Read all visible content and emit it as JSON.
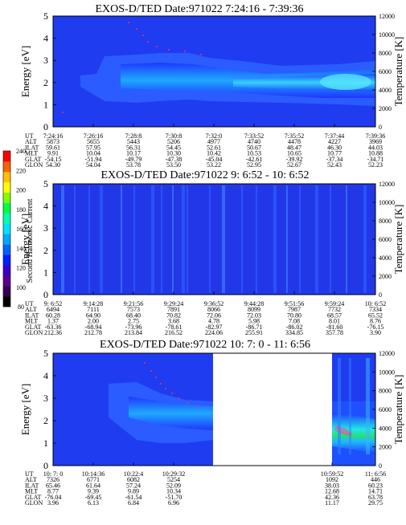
{
  "chart_data": [
    {
      "type": "heatmap",
      "title": "EXOS-D/TED   Date:971022  7:24:16 - 7:39:36",
      "ylabel": "Energy [eV]",
      "ylabel_right": "Temperature [K]",
      "ylim": [
        0,
        5
      ],
      "ylim_right": [
        0,
        12000
      ],
      "yticks": [
        "0",
        "1",
        "2",
        "3",
        "4",
        "5"
      ],
      "yticks_right": [
        "0",
        "2000",
        "4000",
        "6000",
        "8000",
        "10000",
        "12000"
      ],
      "row_labels": [
        "UT",
        "ALT",
        "ILAT",
        "MLT",
        "GLAT",
        "GLON"
      ],
      "columns": [
        [
          "7:24:16",
          "5873",
          "59.61",
          "9.91",
          "-54.15",
          "54.30"
        ],
        [
          "7:26:16",
          "5655",
          "57.95",
          "10.04",
          "-51.94",
          "54.04"
        ],
        [
          "7:28:8",
          "5443",
          "56.31",
          "10.17",
          "-49.79",
          "53.78"
        ],
        [
          "7:30:8",
          "5206",
          "54.45",
          "10.30",
          "-47.38",
          "53.50"
        ],
        [
          "7:32:0",
          "4977",
          "52.61",
          "10.42",
          "-45.04",
          "53.22"
        ],
        [
          "7:33:52",
          "4740",
          "50.67",
          "10.53",
          "-42.61",
          "52.95"
        ],
        [
          "7:35:52",
          "4478",
          "48.47",
          "10.65",
          "-39.92",
          "52.67"
        ],
        [
          "7:37:44",
          "4227",
          "46.30",
          "10.77",
          "-37.34",
          "52.43"
        ],
        [
          "7:39:36",
          "3969",
          "44.03",
          "10.88",
          "-34.71",
          "52.23"
        ]
      ],
      "band": {
        "center_ev": [
          2.6,
          2.5,
          2.5,
          2.4,
          2.3,
          2.3,
          2.2,
          2.2,
          2.0
        ],
        "half_width_ev": [
          0.5,
          1.0,
          1.0,
          0.9,
          0.8,
          0.8,
          0.8,
          0.7,
          0.8
        ]
      }
    },
    {
      "type": "heatmap",
      "title": "EXOS-D/TED   Date:971022  9: 6:52 - 10: 6:52",
      "ylabel": "Energy [eV]",
      "ylabel_right": "Temperature [K]",
      "ylim": [
        0,
        5
      ],
      "ylim_right": [
        0,
        12000
      ],
      "yticks": [
        "0",
        "1",
        "2",
        "3",
        "4",
        "5"
      ],
      "yticks_right": [
        "0",
        "2000",
        "4000",
        "6000",
        "8000",
        "10000",
        "12000"
      ],
      "row_labels": [
        "UT",
        "ALT",
        "ILAT",
        "MLT",
        "GLAT",
        "GLON"
      ],
      "columns": [
        [
          "9: 6:52",
          "6494",
          "60.28",
          "1.37",
          "-63.36",
          "212.36"
        ],
        [
          "9:14:28",
          "7111",
          "64.90",
          "2.00",
          "-68.94",
          "212.78"
        ],
        [
          "9:21:56",
          "7573",
          "68.40",
          "2.75",
          "-73.96",
          "213.84"
        ],
        [
          "9:29:24",
          "7891",
          "70.82",
          "3.68",
          "-78.61",
          "216.52"
        ],
        [
          "9:36:52",
          "8066",
          "72.06",
          "4.78",
          "-82.97",
          "224.06"
        ],
        [
          "9:44:28",
          "8099",
          "72.03",
          "5.98",
          "-86.71",
          "255.91"
        ],
        [
          "9:51:56",
          "7987",
          "70.80",
          "7.08",
          "-86.02",
          "334.85"
        ],
        [
          "9:59:24",
          "7732",
          "68.57",
          "8.01",
          "-81.60",
          "357.78"
        ],
        [
          "10: 6:52",
          "7334",
          "65.52",
          "8.76",
          "-76.15",
          "3.90"
        ]
      ]
    },
    {
      "type": "heatmap",
      "title": "EXOS-D/TED   Date:971022  10: 7: 0 - 11: 6:56",
      "ylabel": "Energy [eV]",
      "ylabel_right": "Temperature [K]",
      "ylim": [
        0,
        5
      ],
      "ylim_right": [
        0,
        12000
      ],
      "yticks": [
        "0",
        "1",
        "2",
        "3",
        "4",
        "5"
      ],
      "yticks_right": [
        "0",
        "2000",
        "4000",
        "6000",
        "8000",
        "10000",
        "12000"
      ],
      "row_labels": [
        "UT",
        "ALT",
        "ILAT",
        "MLT",
        "GLAT",
        "GLON"
      ],
      "columns": [
        [
          "10: 7: 0",
          "7326",
          "65.46",
          "8.77",
          "-76.04",
          "3.96"
        ],
        [
          "10:14:36",
          "6771",
          "61.64",
          "9.39",
          "-69.45",
          "6.13"
        ],
        [
          "10:22:4",
          "6082",
          "57.24",
          "9.89",
          "-61.54",
          "6.84"
        ],
        [
          "10:29:32",
          "5254",
          "52.09",
          "10.34",
          "-51.70",
          "6.96"
        ],
        [
          "10:59:52",
          "1092",
          "38.03",
          "12.68",
          "42.36",
          "11.17"
        ],
        [
          "11: 6:56",
          "446",
          "60.23",
          "14.71",
          "63.78",
          "29.75"
        ]
      ]
    }
  ],
  "colorbar": {
    "label": "Second Harmonic Current",
    "ticks": [
      "80",
      "100",
      "120",
      "140",
      "160",
      "180",
      "200",
      "220",
      "240"
    ],
    "range": [
      80,
      240
    ]
  }
}
